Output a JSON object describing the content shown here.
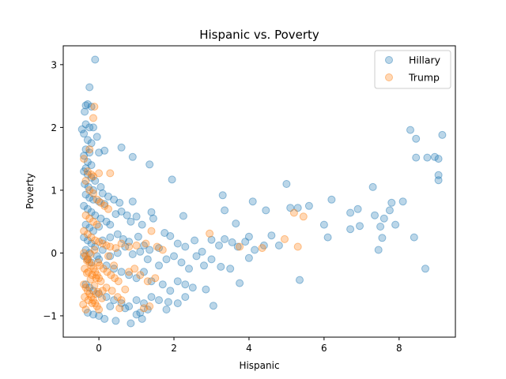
{
  "chart_data": {
    "type": "scatter",
    "title": "Hispanic vs. Poverty",
    "xlabel": "Hispanic",
    "ylabel": "Poverty",
    "xlim": [
      -0.95,
      9.5
    ],
    "ylim": [
      -1.34,
      3.3
    ],
    "xticks": [
      0,
      2,
      4,
      6,
      8
    ],
    "yticks": [
      -1,
      0,
      1,
      2,
      3
    ],
    "grid": false,
    "legend_position": "top-right",
    "marker_alpha": 0.3,
    "series": [
      {
        "name": "Hillary",
        "color": "#1f77b4",
        "points": [
          [
            -0.1,
            3.08
          ],
          [
            -0.25,
            2.64
          ],
          [
            -0.35,
            2.35
          ],
          [
            -0.38,
            2.25
          ],
          [
            -0.2,
            2.33
          ],
          [
            -0.3,
            2.37
          ],
          [
            -0.45,
            1.97
          ],
          [
            -0.35,
            2.05
          ],
          [
            -0.25,
            2.0
          ],
          [
            -0.15,
            2.0
          ],
          [
            -0.4,
            1.9
          ],
          [
            -0.3,
            1.8
          ],
          [
            -0.2,
            1.75
          ],
          [
            -0.35,
            1.65
          ],
          [
            -0.25,
            1.6
          ],
          [
            -0.05,
            1.85
          ],
          [
            -0.4,
            1.55
          ],
          [
            -0.3,
            1.45
          ],
          [
            -0.2,
            1.4
          ],
          [
            -0.35,
            1.35
          ],
          [
            0.0,
            1.6
          ],
          [
            0.15,
            1.63
          ],
          [
            0.6,
            1.68
          ],
          [
            0.9,
            1.53
          ],
          [
            1.35,
            1.41
          ],
          [
            1.95,
            1.17
          ],
          [
            -0.4,
            1.3
          ],
          [
            -0.3,
            1.25
          ],
          [
            -0.2,
            1.2
          ],
          [
            -0.1,
            1.15
          ],
          [
            -0.38,
            1.1
          ],
          [
            -0.28,
            1.05
          ],
          [
            -0.15,
            1.0
          ],
          [
            0.05,
            1.05
          ],
          [
            0.1,
            0.95
          ],
          [
            -0.35,
            0.93
          ],
          [
            -0.25,
            0.88
          ],
          [
            -0.15,
            0.85
          ],
          [
            0.0,
            0.82
          ],
          [
            0.15,
            0.78
          ],
          [
            0.25,
            0.9
          ],
          [
            0.4,
            0.85
          ],
          [
            0.55,
            0.8
          ],
          [
            0.9,
            0.82
          ],
          [
            0.6,
            0.66
          ],
          [
            0.45,
            0.62
          ],
          [
            -0.4,
            0.75
          ],
          [
            -0.3,
            0.7
          ],
          [
            -0.2,
            0.65
          ],
          [
            -0.1,
            0.6
          ],
          [
            0.05,
            0.55
          ],
          [
            0.2,
            0.5
          ],
          [
            -0.35,
            0.45
          ],
          [
            -0.25,
            0.4
          ],
          [
            -0.15,
            0.35
          ],
          [
            0.0,
            0.42
          ],
          [
            0.3,
            0.45
          ],
          [
            0.75,
            0.6
          ],
          [
            1.0,
            0.58
          ],
          [
            1.4,
            0.65
          ],
          [
            1.45,
            0.55
          ],
          [
            1.15,
            0.45
          ],
          [
            0.85,
            0.5
          ],
          [
            2.25,
            0.59
          ],
          [
            -0.4,
            0.25
          ],
          [
            -0.3,
            0.2
          ],
          [
            -0.2,
            0.15
          ],
          [
            -0.1,
            0.1
          ],
          [
            0.1,
            0.2
          ],
          [
            0.3,
            0.25
          ],
          [
            0.5,
            0.3
          ],
          [
            0.65,
            0.22
          ],
          [
            0.8,
            0.18
          ],
          [
            1.05,
            0.26
          ],
          [
            1.2,
            0.12
          ],
          [
            1.35,
            0.05
          ],
          [
            1.6,
            0.08
          ],
          [
            1.75,
            0.32
          ],
          [
            1.9,
            0.27
          ],
          [
            2.1,
            0.15
          ],
          [
            2.3,
            0.1
          ],
          [
            2.55,
            0.2
          ],
          [
            2.75,
            0.02
          ],
          [
            3.0,
            0.21
          ],
          [
            3.2,
            0.12
          ],
          [
            3.35,
            0.22
          ],
          [
            3.55,
            0.17
          ],
          [
            3.7,
            0.1
          ],
          [
            3.9,
            0.18
          ],
          [
            4.0,
            0.26
          ],
          [
            4.15,
            0.05
          ],
          [
            4.4,
            0.12
          ],
          [
            4.6,
            0.28
          ],
          [
            4.8,
            0.12
          ],
          [
            3.3,
            0.92
          ],
          [
            3.35,
            0.68
          ],
          [
            3.65,
            0.47
          ],
          [
            4.1,
            0.82
          ],
          [
            4.45,
            0.68
          ],
          [
            5.0,
            1.1
          ],
          [
            5.1,
            0.72
          ],
          [
            5.3,
            0.72
          ],
          [
            5.6,
            0.75
          ],
          [
            6.0,
            0.45
          ],
          [
            6.2,
            0.85
          ],
          [
            6.7,
            0.64
          ],
          [
            6.9,
            0.7
          ],
          [
            7.3,
            1.05
          ],
          [
            7.35,
            0.6
          ],
          [
            7.6,
            0.55
          ],
          [
            7.75,
            0.68
          ],
          [
            7.8,
            0.8
          ],
          [
            8.1,
            0.82
          ],
          [
            7.9,
            0.45
          ],
          [
            6.1,
            0.25
          ],
          [
            6.7,
            0.38
          ],
          [
            6.95,
            0.43
          ],
          [
            7.5,
            0.42
          ],
          [
            7.55,
            0.24
          ],
          [
            7.45,
            0.05
          ],
          [
            8.4,
            0.25
          ],
          [
            8.7,
            -0.25
          ],
          [
            5.35,
            -0.43
          ],
          [
            8.3,
            1.96
          ],
          [
            8.45,
            1.82
          ],
          [
            8.45,
            1.52
          ],
          [
            8.75,
            1.52
          ],
          [
            8.95,
            1.53
          ],
          [
            9.05,
            1.5
          ],
          [
            9.15,
            1.88
          ],
          [
            9.05,
            1.24
          ],
          [
            9.05,
            1.16
          ],
          [
            -0.4,
            -0.05
          ],
          [
            -0.3,
            -0.1
          ],
          [
            -0.2,
            -0.15
          ],
          [
            0.0,
            -0.1
          ],
          [
            0.2,
            -0.2
          ],
          [
            0.4,
            -0.25
          ],
          [
            0.6,
            -0.3
          ],
          [
            0.8,
            -0.35
          ],
          [
            1.0,
            -0.4
          ],
          [
            1.2,
            -0.3
          ],
          [
            1.4,
            -0.45
          ],
          [
            1.6,
            -0.2
          ],
          [
            1.8,
            -0.1
          ],
          [
            2.0,
            -0.05
          ],
          [
            2.2,
            -0.15
          ],
          [
            2.4,
            -0.25
          ],
          [
            2.6,
            -0.05
          ],
          [
            2.8,
            -0.2
          ],
          [
            3.0,
            -0.1
          ],
          [
            3.25,
            -0.22
          ],
          [
            3.5,
            -0.25
          ],
          [
            3.75,
            -0.48
          ],
          [
            4.0,
            -0.08
          ],
          [
            1.7,
            -0.5
          ],
          [
            1.9,
            -0.6
          ],
          [
            2.1,
            -0.45
          ],
          [
            2.3,
            -0.5
          ],
          [
            2.5,
            -0.55
          ],
          [
            2.85,
            -0.58
          ],
          [
            3.05,
            -0.84
          ],
          [
            -0.35,
            -0.5
          ],
          [
            -0.25,
            -0.55
          ],
          [
            -0.15,
            -0.6
          ],
          [
            0.0,
            -0.65
          ],
          [
            0.2,
            -0.7
          ],
          [
            0.4,
            -0.75
          ],
          [
            0.6,
            -0.8
          ],
          [
            0.8,
            -0.85
          ],
          [
            1.0,
            -0.75
          ],
          [
            1.2,
            -0.8
          ],
          [
            1.4,
            -0.7
          ],
          [
            1.6,
            -0.75
          ],
          [
            1.85,
            -0.78
          ],
          [
            2.1,
            -0.8
          ],
          [
            2.3,
            -0.7
          ],
          [
            1.8,
            -0.9
          ],
          [
            1.3,
            -0.9
          ],
          [
            1.1,
            -0.95
          ],
          [
            -0.3,
            -0.95
          ],
          [
            -0.15,
            -0.98
          ],
          [
            0.0,
            -1.0
          ],
          [
            0.15,
            -1.05
          ],
          [
            0.45,
            -1.08
          ],
          [
            0.85,
            -1.12
          ],
          [
            1.0,
            -0.98
          ],
          [
            1.15,
            -1.05
          ],
          [
            0.7,
            -0.88
          ],
          [
            0.3,
            -0.85
          ],
          [
            -0.35,
            0.05
          ],
          [
            -0.25,
            0.0
          ],
          [
            -0.05,
            -0.05
          ],
          [
            0.1,
            0.05
          ],
          [
            0.3,
            -0.05
          ],
          [
            0.5,
            0.0
          ],
          [
            0.7,
            0.1
          ],
          [
            0.9,
            -0.02
          ],
          [
            1.1,
            0.02
          ],
          [
            1.3,
            -0.1
          ]
        ]
      },
      {
        "name": "Trump",
        "color": "#ff7f0e",
        "points": [
          [
            -0.12,
            2.33
          ],
          [
            -0.15,
            2.15
          ],
          [
            -0.25,
            1.65
          ],
          [
            -0.4,
            1.5
          ],
          [
            -0.3,
            1.3
          ],
          [
            -0.2,
            1.25
          ],
          [
            -0.15,
            1.22
          ],
          [
            0.0,
            1.27
          ],
          [
            0.3,
            1.27
          ],
          [
            -0.35,
            1.15
          ],
          [
            -0.25,
            1.0
          ],
          [
            -0.15,
            0.95
          ],
          [
            -0.05,
            0.85
          ],
          [
            0.05,
            0.8
          ],
          [
            0.15,
            0.75
          ],
          [
            0.25,
            0.7
          ],
          [
            -0.35,
            0.6
          ],
          [
            -0.25,
            0.55
          ],
          [
            -0.15,
            0.5
          ],
          [
            -0.05,
            0.45
          ],
          [
            -0.4,
            0.35
          ],
          [
            -0.3,
            0.3
          ],
          [
            -0.2,
            0.25
          ],
          [
            -0.1,
            0.2
          ],
          [
            0.0,
            0.18
          ],
          [
            0.1,
            0.15
          ],
          [
            0.2,
            0.12
          ],
          [
            0.3,
            0.1
          ],
          [
            0.45,
            0.08
          ],
          [
            0.6,
            0.15
          ],
          [
            0.8,
            0.1
          ],
          [
            1.0,
            0.12
          ],
          [
            1.25,
            0.15
          ],
          [
            1.4,
            0.35
          ],
          [
            1.55,
            0.1
          ],
          [
            1.7,
            0.05
          ],
          [
            2.95,
            0.31
          ],
          [
            3.75,
            0.1
          ],
          [
            4.35,
            0.08
          ],
          [
            4.95,
            0.22
          ],
          [
            5.2,
            0.64
          ],
          [
            5.45,
            0.58
          ],
          [
            5.3,
            0.1
          ],
          [
            -0.4,
            0.0
          ],
          [
            -0.35,
            -0.05
          ],
          [
            -0.3,
            -0.1
          ],
          [
            -0.25,
            -0.15
          ],
          [
            -0.2,
            -0.2
          ],
          [
            -0.15,
            -0.25
          ],
          [
            -0.1,
            -0.3
          ],
          [
            -0.05,
            -0.35
          ],
          [
            0.0,
            -0.4
          ],
          [
            0.05,
            -0.45
          ],
          [
            -0.4,
            -0.5
          ],
          [
            -0.35,
            -0.55
          ],
          [
            -0.3,
            -0.6
          ],
          [
            -0.25,
            -0.65
          ],
          [
            -0.2,
            -0.7
          ],
          [
            -0.15,
            -0.75
          ],
          [
            -0.1,
            -0.8
          ],
          [
            -0.05,
            -0.85
          ],
          [
            0.0,
            -0.9
          ],
          [
            -0.35,
            -0.9
          ],
          [
            -0.38,
            -0.25
          ],
          [
            -0.28,
            -0.3
          ],
          [
            -0.18,
            -0.35
          ],
          [
            -0.08,
            -0.4
          ],
          [
            0.02,
            -0.2
          ],
          [
            0.12,
            -0.25
          ],
          [
            0.22,
            -0.3
          ],
          [
            0.32,
            -0.35
          ],
          [
            0.42,
            -0.4
          ],
          [
            0.52,
            -0.45
          ],
          [
            -0.38,
            -0.7
          ],
          [
            -0.28,
            -0.75
          ],
          [
            -0.18,
            -0.8
          ],
          [
            -0.08,
            -0.65
          ],
          [
            0.1,
            -0.6
          ],
          [
            0.2,
            -0.55
          ],
          [
            0.35,
            -0.6
          ],
          [
            0.5,
            -0.7
          ],
          [
            0.6,
            -0.75
          ],
          [
            0.7,
            -0.58
          ],
          [
            0.8,
            -0.3
          ],
          [
            0.95,
            -0.25
          ],
          [
            1.1,
            -0.35
          ],
          [
            1.3,
            -0.45
          ],
          [
            1.5,
            -0.4
          ],
          [
            1.35,
            -0.85
          ],
          [
            1.2,
            -0.88
          ],
          [
            0.55,
            -0.88
          ],
          [
            0.4,
            -0.2
          ],
          [
            0.25,
            -0.05
          ],
          [
            -0.32,
            -0.12
          ],
          [
            -0.22,
            -0.42
          ],
          [
            -0.12,
            -0.52
          ],
          [
            -0.02,
            -0.62
          ],
          [
            0.08,
            -0.72
          ],
          [
            -0.42,
            -0.82
          ],
          [
            -0.32,
            -0.32
          ],
          [
            -0.22,
            -0.02
          ],
          [
            -0.12,
            0.05
          ],
          [
            -0.02,
            -0.15
          ]
        ]
      }
    ]
  }
}
